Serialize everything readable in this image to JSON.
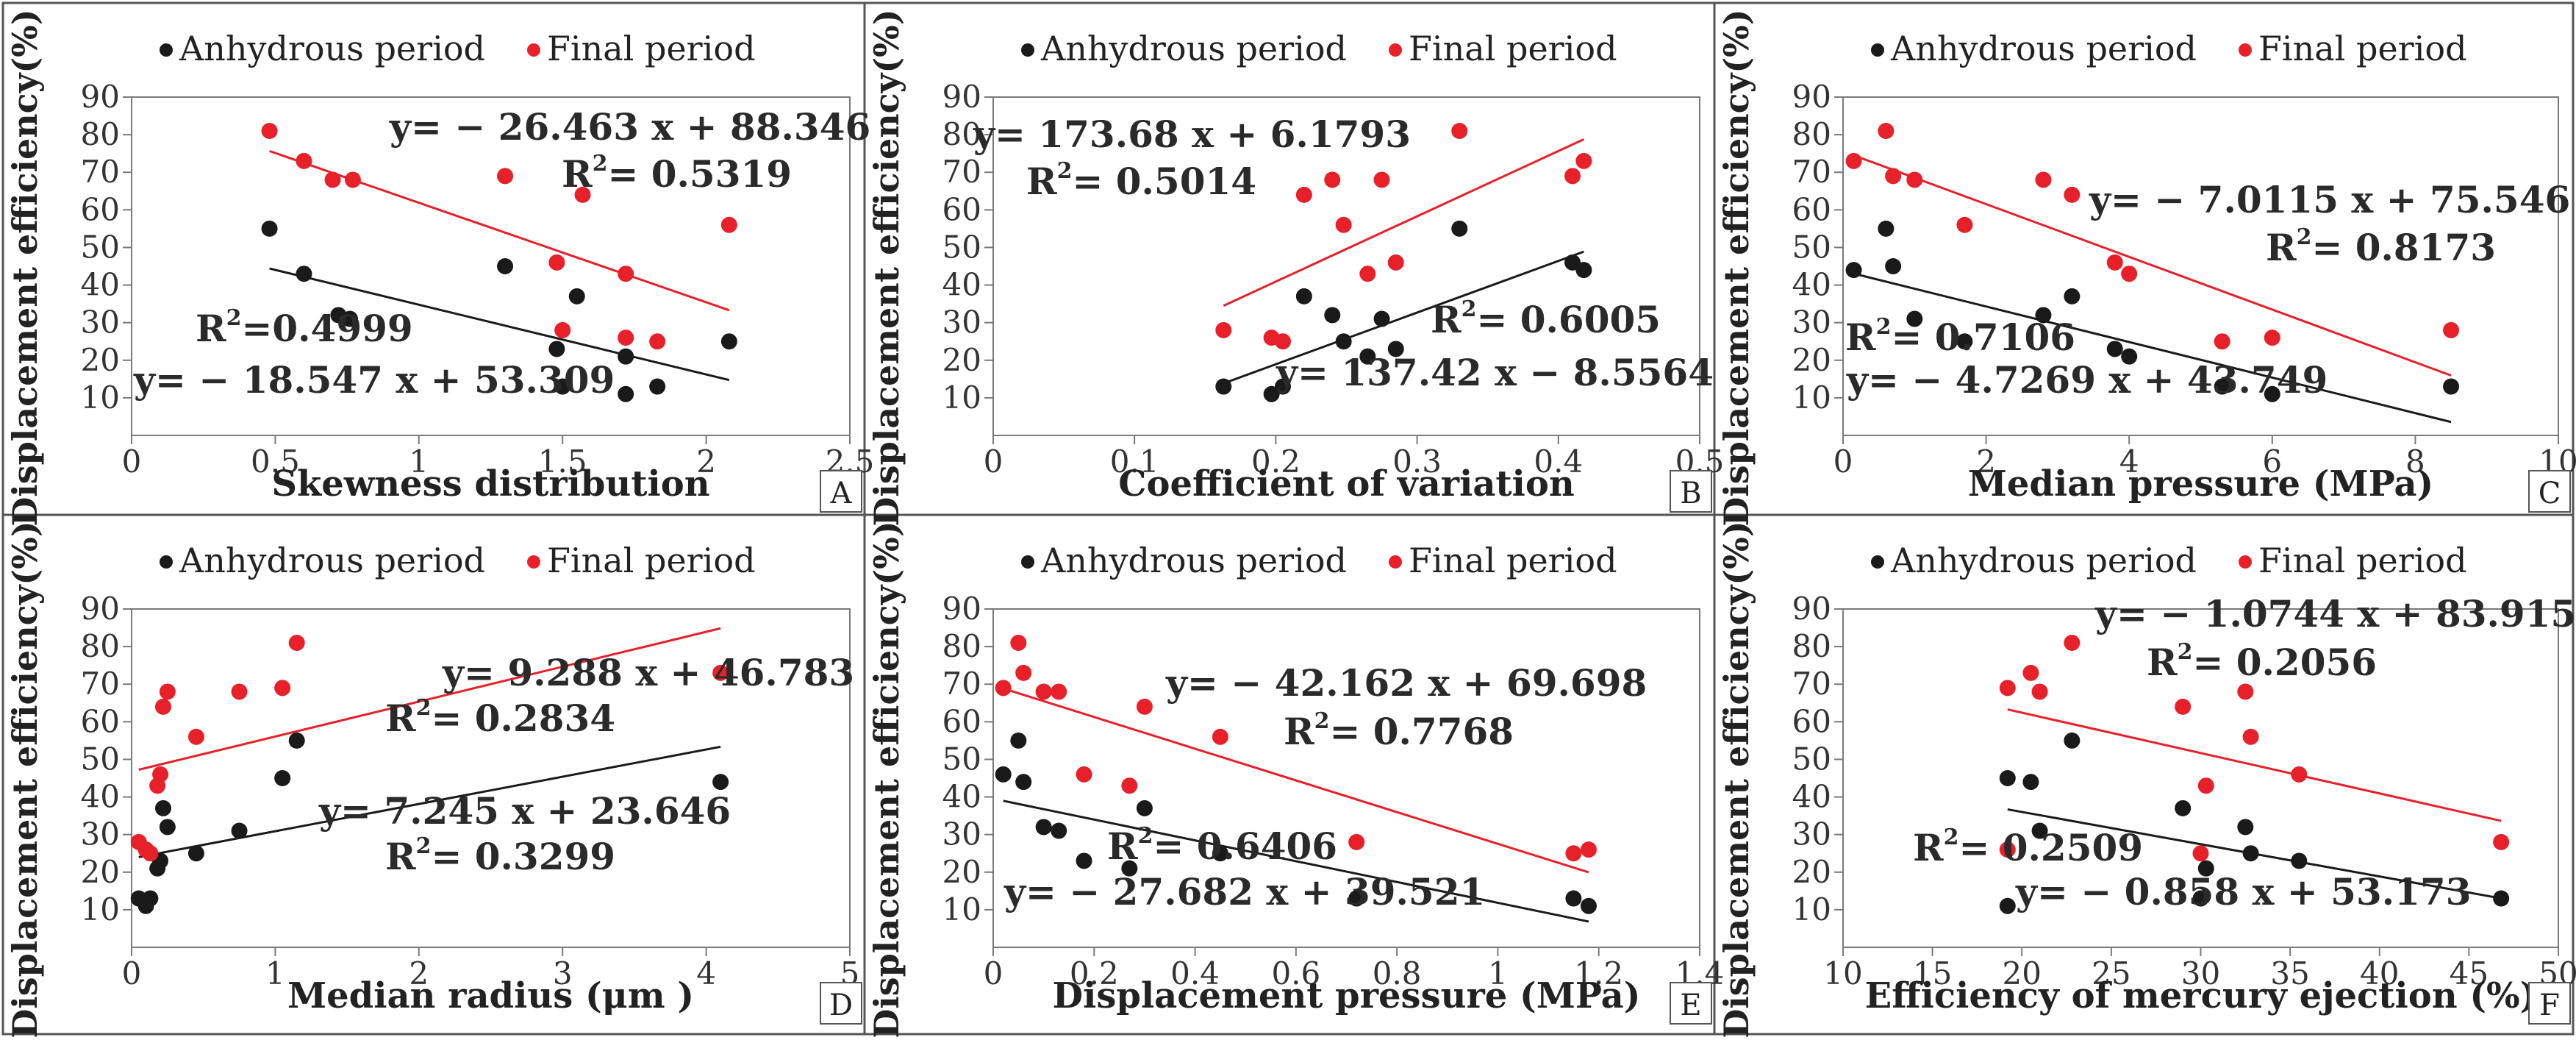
{
  "colors": {
    "anhydrous": "#1a1a1a",
    "final": "#e8202a",
    "frame": "#555555",
    "grid": "#7a7a7a"
  },
  "legend": {
    "anhydrous": "Anhydrous period",
    "final": "Final period"
  },
  "chart_data": [
    {
      "panel": "A",
      "type": "scatter",
      "xlabel": "Skewness distribution",
      "ylabel": "Displacement efficiency(%)",
      "xlim": [
        0,
        2.5
      ],
      "ylim": [
        0,
        90
      ],
      "xticks": [
        0,
        0.5,
        1,
        1.5,
        2,
        2.5
      ],
      "yticks": [
        10,
        20,
        30,
        40,
        50,
        60,
        70,
        80,
        90
      ],
      "xtick_labels": [
        "0",
        "0.5",
        "1",
        "1.5",
        "2",
        "2.5"
      ],
      "series": [
        {
          "name": "Anhydrous period",
          "points": [
            [
              0.48,
              55
            ],
            [
              0.6,
              43
            ],
            [
              0.72,
              32
            ],
            [
              0.76,
              31
            ],
            [
              1.3,
              45
            ],
            [
              1.48,
              23
            ],
            [
              1.5,
              13
            ],
            [
              1.55,
              37
            ],
            [
              1.72,
              21
            ],
            [
              1.72,
              11
            ],
            [
              1.83,
              13
            ],
            [
              2.08,
              25
            ]
          ],
          "fit": {
            "equation": "y= − 18.547 x + 53.309",
            "r2_label": "R",
            "r2_value": "=0.4999",
            "slope": -18.547,
            "intercept": 53.309,
            "xrange": [
              0.48,
              2.08
            ]
          }
        },
        {
          "name": "Final period",
          "points": [
            [
              0.48,
              81
            ],
            [
              0.6,
              73
            ],
            [
              0.7,
              68
            ],
            [
              0.77,
              68
            ],
            [
              1.3,
              69
            ],
            [
              1.48,
              46
            ],
            [
              1.5,
              28
            ],
            [
              1.57,
              64
            ],
            [
              1.72,
              43
            ],
            [
              1.72,
              26
            ],
            [
              1.83,
              25
            ],
            [
              2.08,
              56
            ]
          ],
          "fit": {
            "equation": "y= − 26.463 x + 88.346",
            "r2_label": "R",
            "r2_value": "= 0.5319",
            "slope": -26.463,
            "intercept": 88.346,
            "xrange": [
              0.48,
              2.08
            ]
          }
        }
      ]
    },
    {
      "panel": "B",
      "type": "scatter",
      "xlabel": "Coefficient of variation",
      "ylabel": "Displacement efficiency(%)",
      "xlim": [
        0,
        0.5
      ],
      "ylim": [
        0,
        90
      ],
      "xticks": [
        0,
        0.1,
        0.2,
        0.3,
        0.4,
        0.5
      ],
      "yticks": [
        10,
        20,
        30,
        40,
        50,
        60,
        70,
        80,
        90
      ],
      "xtick_labels": [
        "0",
        "0.1",
        "0.2",
        "0.3",
        "0.4",
        "0.5"
      ],
      "series": [
        {
          "name": "Anhydrous period",
          "points": [
            [
              0.163,
              13
            ],
            [
              0.197,
              11
            ],
            [
              0.205,
              13
            ],
            [
              0.22,
              37
            ],
            [
              0.24,
              32
            ],
            [
              0.248,
              25
            ],
            [
              0.265,
              21
            ],
            [
              0.275,
              31
            ],
            [
              0.285,
              23
            ],
            [
              0.33,
              55
            ],
            [
              0.41,
              46
            ],
            [
              0.418,
              44
            ]
          ],
          "fit": {
            "equation": "y= 137.42 x − 8.5564",
            "r2_label": "R",
            "r2_value": "= 0.6005",
            "slope": 137.42,
            "intercept": -8.5564,
            "xrange": [
              0.163,
              0.418
            ]
          }
        },
        {
          "name": "Final period",
          "points": [
            [
              0.163,
              28
            ],
            [
              0.197,
              26
            ],
            [
              0.205,
              25
            ],
            [
              0.22,
              64
            ],
            [
              0.24,
              68
            ],
            [
              0.248,
              56
            ],
            [
              0.265,
              43
            ],
            [
              0.275,
              68
            ],
            [
              0.285,
              46
            ],
            [
              0.33,
              81
            ],
            [
              0.41,
              69
            ],
            [
              0.418,
              73
            ]
          ],
          "fit": {
            "equation": "y= 173.68 x + 6.1793",
            "r2_label": "R",
            "r2_value": "= 0.5014",
            "slope": 173.68,
            "intercept": 6.1793,
            "xrange": [
              0.163,
              0.418
            ]
          }
        }
      ]
    },
    {
      "panel": "C",
      "type": "scatter",
      "xlabel": "Median pressure (MPa)",
      "ylabel": "Displacement efficiency(%)",
      "xlim": [
        0,
        10
      ],
      "ylim": [
        0,
        90
      ],
      "xticks": [
        0,
        2,
        4,
        6,
        8,
        10
      ],
      "yticks": [
        10,
        20,
        30,
        40,
        50,
        60,
        70,
        80,
        90
      ],
      "xtick_labels": [
        "0",
        "2",
        "4",
        "6",
        "8",
        "10"
      ],
      "series": [
        {
          "name": "Anhydrous period",
          "points": [
            [
              0.15,
              44
            ],
            [
              0.6,
              55
            ],
            [
              0.7,
              45
            ],
            [
              1.0,
              31
            ],
            [
              1.7,
              25
            ],
            [
              2.8,
              32
            ],
            [
              3.2,
              37
            ],
            [
              3.8,
              23
            ],
            [
              4.0,
              21
            ],
            [
              5.3,
              13
            ],
            [
              6.0,
              11
            ],
            [
              8.5,
              13
            ]
          ],
          "fit": {
            "equation": "y= − 4.7269 x + 43.749",
            "r2_label": "R",
            "r2_value": "= 0.7106",
            "slope": -4.7269,
            "intercept": 43.749,
            "xrange": [
              0.15,
              8.5
            ]
          }
        },
        {
          "name": "Final period",
          "points": [
            [
              0.15,
              73
            ],
            [
              0.6,
              81
            ],
            [
              0.7,
              69
            ],
            [
              1.0,
              68
            ],
            [
              1.7,
              56
            ],
            [
              2.8,
              68
            ],
            [
              3.2,
              64
            ],
            [
              3.8,
              46
            ],
            [
              4.0,
              43
            ],
            [
              5.3,
              25
            ],
            [
              6.0,
              26
            ],
            [
              8.5,
              28
            ]
          ],
          "fit": {
            "equation": "y= − 7.0115 x + 75.546",
            "r2_label": "R",
            "r2_value": "= 0.8173",
            "slope": -7.0115,
            "intercept": 75.546,
            "xrange": [
              0.15,
              8.5
            ]
          }
        }
      ]
    },
    {
      "panel": "D",
      "type": "scatter",
      "xlabel": "Median radius (μm )",
      "ylabel": "Displacement efficiency(%)",
      "xlim": [
        0,
        5
      ],
      "ylim": [
        0,
        90
      ],
      "xticks": [
        0,
        1,
        2,
        3,
        4,
        5
      ],
      "yticks": [
        10,
        20,
        30,
        40,
        50,
        60,
        70,
        80,
        90
      ],
      "xtick_labels": [
        "0",
        "1",
        "2",
        "3",
        "4",
        "5"
      ],
      "series": [
        {
          "name": "Anhydrous period",
          "points": [
            [
              0.05,
              13
            ],
            [
              0.1,
              11
            ],
            [
              0.13,
              13
            ],
            [
              0.18,
              21
            ],
            [
              0.2,
              23
            ],
            [
              0.22,
              37
            ],
            [
              0.25,
              32
            ],
            [
              0.45,
              25
            ],
            [
              0.75,
              31
            ],
            [
              1.05,
              45
            ],
            [
              1.15,
              55
            ],
            [
              4.1,
              44
            ]
          ],
          "fit": {
            "equation": "y= 7.245 x + 23.646",
            "r2_label": "R",
            "r2_value": "= 0.3299",
            "slope": 7.245,
            "intercept": 23.646,
            "xrange": [
              0.05,
              4.1
            ]
          }
        },
        {
          "name": "Final period",
          "points": [
            [
              0.05,
              28
            ],
            [
              0.1,
              26
            ],
            [
              0.13,
              25
            ],
            [
              0.18,
              43
            ],
            [
              0.2,
              46
            ],
            [
              0.22,
              64
            ],
            [
              0.25,
              68
            ],
            [
              0.45,
              56
            ],
            [
              0.75,
              68
            ],
            [
              1.05,
              69
            ],
            [
              1.15,
              81
            ],
            [
              4.1,
              73
            ]
          ],
          "fit": {
            "equation": "y= 9.288 x + 46.783",
            "r2_label": "R",
            "r2_value": "= 0.2834",
            "slope": 9.288,
            "intercept": 46.783,
            "xrange": [
              0.05,
              4.1
            ]
          }
        }
      ]
    },
    {
      "panel": "E",
      "type": "scatter",
      "xlabel": "Displacement pressure (MPa)",
      "ylabel": "Displacement efficiency(%)",
      "xlim": [
        0,
        1.4
      ],
      "ylim": [
        0,
        90
      ],
      "xticks": [
        0,
        0.2,
        0.4,
        0.6,
        0.8,
        1,
        1.2,
        1.4
      ],
      "yticks": [
        10,
        20,
        30,
        40,
        50,
        60,
        70,
        80,
        90
      ],
      "xtick_labels": [
        "0",
        "0.2",
        "0.4",
        "0.6",
        "0.8",
        "1",
        "1.2",
        "1.4"
      ],
      "series": [
        {
          "name": "Anhydrous period",
          "points": [
            [
              0.02,
              46
            ],
            [
              0.05,
              55
            ],
            [
              0.06,
              44
            ],
            [
              0.1,
              32
            ],
            [
              0.13,
              31
            ],
            [
              0.18,
              23
            ],
            [
              0.27,
              21
            ],
            [
              0.3,
              37
            ],
            [
              0.45,
              25
            ],
            [
              0.72,
              13
            ],
            [
              1.15,
              13
            ],
            [
              1.18,
              11
            ]
          ],
          "fit": {
            "equation": "y= − 27.682 x + 39.521",
            "r2_label": "R",
            "r2_value": "= 0.6406",
            "slope": -27.682,
            "intercept": 39.521,
            "xrange": [
              0.02,
              1.18
            ]
          }
        },
        {
          "name": "Final period",
          "points": [
            [
              0.02,
              69
            ],
            [
              0.05,
              81
            ],
            [
              0.06,
              73
            ],
            [
              0.1,
              68
            ],
            [
              0.13,
              68
            ],
            [
              0.18,
              46
            ],
            [
              0.27,
              43
            ],
            [
              0.3,
              64
            ],
            [
              0.45,
              56
            ],
            [
              0.72,
              28
            ],
            [
              1.15,
              25
            ],
            [
              1.18,
              26
            ]
          ],
          "fit": {
            "equation": "y= − 42.162 x + 69.698",
            "r2_label": "R",
            "r2_value": "= 0.7768",
            "slope": -42.162,
            "intercept": 69.698,
            "xrange": [
              0.02,
              1.18
            ]
          }
        }
      ]
    },
    {
      "panel": "F",
      "type": "scatter",
      "xlabel": "Efficiency of mercury ejection (%)",
      "ylabel": "Displacement efficiency(%)",
      "xlim": [
        10,
        50
      ],
      "ylim": [
        0,
        90
      ],
      "xticks": [
        10,
        15,
        20,
        25,
        30,
        35,
        40,
        45,
        50
      ],
      "yticks": [
        10,
        20,
        30,
        40,
        50,
        60,
        70,
        80,
        90
      ],
      "xtick_labels": [
        "10",
        "15",
        "20",
        "25",
        "30",
        "35",
        "40",
        "45",
        "50"
      ],
      "series": [
        {
          "name": "Anhydrous period",
          "points": [
            [
              19.2,
              11
            ],
            [
              19.2,
              45
            ],
            [
              20.5,
              44
            ],
            [
              21.0,
              31
            ],
            [
              22.8,
              55
            ],
            [
              29.0,
              37
            ],
            [
              30.0,
              13
            ],
            [
              30.3,
              21
            ],
            [
              32.5,
              32
            ],
            [
              32.8,
              25
            ],
            [
              35.5,
              23
            ],
            [
              46.8,
              13
            ]
          ],
          "fit": {
            "equation": "y= − 0.858 x + 53.173",
            "r2_label": "R",
            "r2_value": "= 0.2509",
            "slope": -0.858,
            "intercept": 53.173,
            "xrange": [
              19.2,
              46.8
            ]
          }
        },
        {
          "name": "Final period",
          "points": [
            [
              19.2,
              26
            ],
            [
              19.2,
              69
            ],
            [
              20.5,
              73
            ],
            [
              21.0,
              68
            ],
            [
              22.8,
              81
            ],
            [
              29.0,
              64
            ],
            [
              30.0,
              25
            ],
            [
              30.3,
              43
            ],
            [
              32.5,
              68
            ],
            [
              32.8,
              56
            ],
            [
              35.5,
              46
            ],
            [
              46.8,
              28
            ]
          ],
          "fit": {
            "equation": "y= − 1.0744 x + 83.915",
            "r2_label": "R",
            "r2_value": "= 0.2056",
            "slope": -1.0744,
            "intercept": 83.915,
            "xrange": [
              19.2,
              46.8
            ]
          }
        }
      ]
    }
  ]
}
